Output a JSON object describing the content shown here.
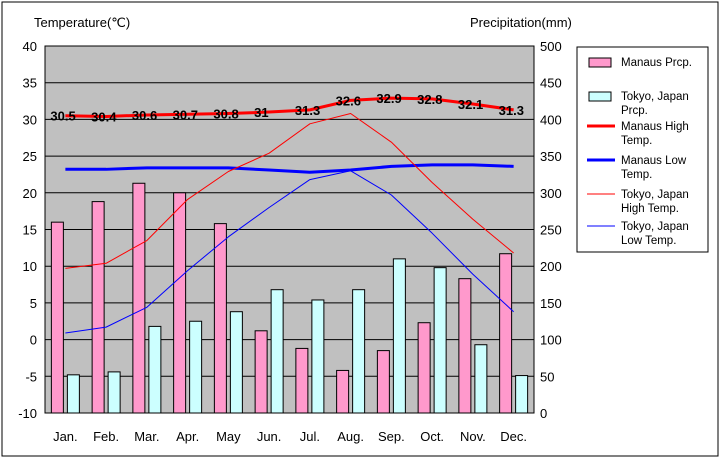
{
  "chart_data": {
    "type": "bar",
    "categories": [
      "Jan.",
      "Feb.",
      "Mar.",
      "Apr.",
      "May",
      "Jun.",
      "Jul.",
      "Aug.",
      "Sep.",
      "Oct.",
      "Nov.",
      "Dec."
    ],
    "left_axis": {
      "title": "Temperature(℃)",
      "min": -10,
      "max": 40,
      "ticks": [
        -10,
        -5,
        0,
        5,
        10,
        15,
        20,
        25,
        30,
        35,
        40
      ]
    },
    "right_axis": {
      "title": "Precipitation(mm)",
      "min": 0,
      "max": 500,
      "ticks": [
        0,
        50,
        100,
        150,
        200,
        250,
        300,
        350,
        400,
        450,
        500
      ]
    },
    "bar_series": [
      {
        "name": "Manaus Prcp.",
        "axis": "right",
        "color": "#ff99cc",
        "values": [
          260,
          288,
          313,
          300,
          258,
          112,
          88,
          58,
          85,
          123,
          183,
          217
        ]
      },
      {
        "name": "Tokyo, Japan Prcp.",
        "axis": "right",
        "color": "#ccffff",
        "values": [
          52,
          56,
          118,
          125,
          138,
          168,
          154,
          168,
          210,
          198,
          93,
          51
        ]
      }
    ],
    "line_series": [
      {
        "name": "Manaus High Temp.",
        "axis": "left",
        "color": "#ff0000",
        "width": 3,
        "values": [
          30.5,
          30.4,
          30.6,
          30.7,
          30.8,
          31,
          31.3,
          32.6,
          32.9,
          32.8,
          32.1,
          31.3
        ],
        "labels": [
          "30.5",
          "30.4",
          "30.6",
          "30.7",
          "30.8",
          "31",
          "31.3",
          "32.6",
          "32.9",
          "32.8",
          "32.1",
          "31.3"
        ]
      },
      {
        "name": "Manaus Low Temp.",
        "axis": "left",
        "color": "#0000ff",
        "width": 3,
        "values": [
          23.2,
          23.2,
          23.4,
          23.4,
          23.4,
          23.1,
          22.8,
          23.1,
          23.6,
          23.8,
          23.8,
          23.6
        ]
      },
      {
        "name": "Tokyo, Japan High Temp.",
        "axis": "left",
        "color": "#ff0000",
        "width": 1,
        "values": [
          9.7,
          10.4,
          13.5,
          19.1,
          22.9,
          25.4,
          29.4,
          30.8,
          26.9,
          21.4,
          16.4,
          11.8
        ]
      },
      {
        "name": "Tokyo, Japan Low Temp.",
        "axis": "left",
        "color": "#0000ff",
        "width": 1,
        "values": [
          0.9,
          1.7,
          4.4,
          9.4,
          14.0,
          18.0,
          21.8,
          23.0,
          19.7,
          14.5,
          8.9,
          3.8
        ]
      }
    ],
    "plot_background": "#c0c0c0",
    "grid": true,
    "legend": "right"
  }
}
